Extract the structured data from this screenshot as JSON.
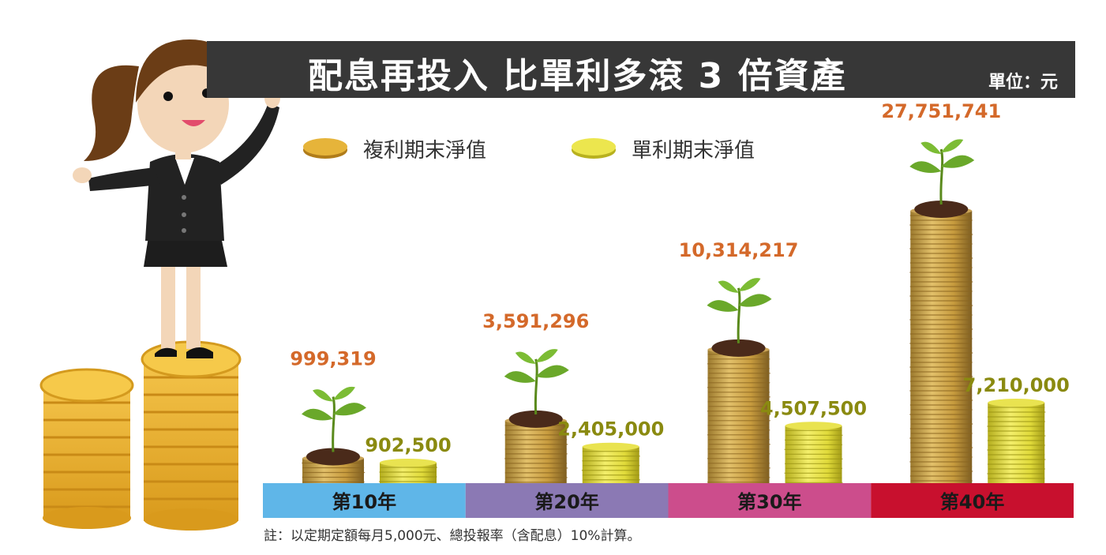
{
  "title": "配息再投入 比單利多滾 3 倍資產",
  "unit": "單位：元",
  "footnote": "註：以定期定額每月5,000元、總投報率（含配息）10%計算。",
  "legend": [
    {
      "label": "複利期末淨值",
      "color": "#d9a62c"
    },
    {
      "label": "單利期末淨值",
      "color": "#e8e04a"
    }
  ],
  "colors": {
    "compound_label": "#d4692a",
    "simple_label": "#8a8a10",
    "compound_coin": "#c9a04a",
    "simple_coin": "#e0dc3e",
    "title_bar": "#373737",
    "category_bands": [
      "#5fb6e8",
      "#8b79b4",
      "#cc4d8c",
      "#c8102e"
    ]
  },
  "chart_data": {
    "type": "bar",
    "categories": [
      "第10年",
      "第20年",
      "第30年",
      "第40年"
    ],
    "series": [
      {
        "name": "複利期末淨值",
        "values": [
          999319,
          3591296,
          10314217,
          27751741
        ],
        "labels": [
          "999,319",
          "3,591,296",
          "10,314,217",
          "27,751,741"
        ]
      },
      {
        "name": "單利期末淨值",
        "values": [
          902500,
          2405000,
          4507500,
          7210000
        ],
        "labels": [
          "902,500",
          "2,405,000",
          "4,507,500",
          "7,210,000"
        ]
      }
    ],
    "ylabel": "",
    "xlabel": ""
  }
}
